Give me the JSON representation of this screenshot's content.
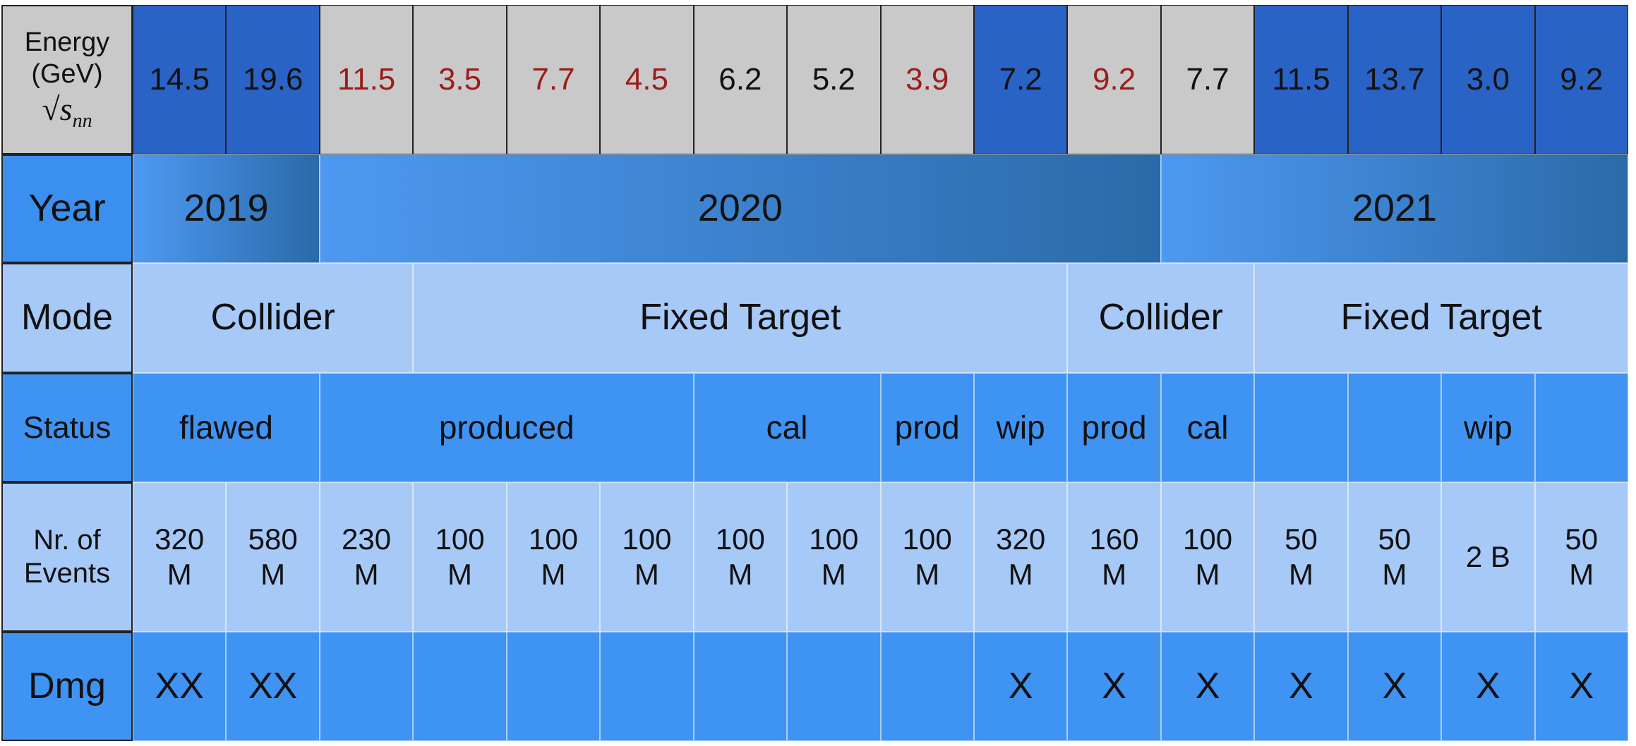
{
  "rows": [
    {
      "label": [
        "Energy",
        "(GeV)"
      ],
      "formula": {
        "radical": "√",
        "base": "s",
        "sub": "nn"
      },
      "cells": [
        {
          "text": "14.5",
          "fill": "#2a63c6",
          "color": "#111111"
        },
        {
          "text": "19.6",
          "fill": "#2a63c6",
          "color": "#111111"
        },
        {
          "text": "11.5",
          "fill": "#c9c9c9",
          "color": "#9c1c1c"
        },
        {
          "text": "3.5",
          "fill": "#c9c9c9",
          "color": "#9c1c1c"
        },
        {
          "text": "7.7",
          "fill": "#c9c9c9",
          "color": "#9c1c1c"
        },
        {
          "text": "4.5",
          "fill": "#c9c9c9",
          "color": "#9c1c1c"
        },
        {
          "text": "6.2",
          "fill": "#c9c9c9",
          "color": "#111111"
        },
        {
          "text": "5.2",
          "fill": "#c9c9c9",
          "color": "#111111"
        },
        {
          "text": "3.9",
          "fill": "#c9c9c9",
          "color": "#9c1c1c"
        },
        {
          "text": "7.2",
          "fill": "#2a63c6",
          "color": "#111111"
        },
        {
          "text": "9.2",
          "fill": "#c9c9c9",
          "color": "#9c1c1c"
        },
        {
          "text": "7.7",
          "fill": "#c9c9c9",
          "color": "#111111"
        },
        {
          "text": "11.5",
          "fill": "#2a63c6",
          "color": "#111111"
        },
        {
          "text": "13.7",
          "fill": "#2a63c6",
          "color": "#111111"
        },
        {
          "text": "3.0",
          "fill": "#2a63c6",
          "color": "#111111"
        },
        {
          "text": "9.2",
          "fill": "#2a63c6",
          "color": "#111111"
        }
      ]
    },
    {
      "label": [
        "Year"
      ],
      "cells": [
        {
          "text": "2019",
          "span": 2
        },
        {
          "text": "2020",
          "span": 9
        },
        {
          "text": "2021",
          "span": 5
        }
      ]
    },
    {
      "label": [
        "Mode"
      ],
      "cells": [
        {
          "text": "Collider",
          "span": 3
        },
        {
          "text": "Fixed Target",
          "span": 7
        },
        {
          "text": "Collider",
          "span": 2
        },
        {
          "text": "Fixed Target",
          "span": 4
        }
      ]
    },
    {
      "label": [
        "Status"
      ],
      "cells": [
        {
          "text": "flawed",
          "span": 2
        },
        {
          "text": "produced",
          "span": 4
        },
        {
          "text": "cal",
          "span": 2
        },
        {
          "text": "prod"
        },
        {
          "text": "wip"
        },
        {
          "text": "prod"
        },
        {
          "text": "cal"
        },
        {
          "text": null
        },
        {
          "text": null
        },
        {
          "text": "wip"
        },
        {
          "text": null
        }
      ]
    },
    {
      "label": [
        "Nr. of",
        "Events"
      ],
      "cells": [
        {
          "text": [
            "320",
            "M"
          ]
        },
        {
          "text": [
            "580",
            "M"
          ]
        },
        {
          "text": [
            "230",
            "M"
          ]
        },
        {
          "text": [
            "100",
            "M"
          ]
        },
        {
          "text": [
            "100",
            "M"
          ]
        },
        {
          "text": [
            "100",
            "M"
          ]
        },
        {
          "text": [
            "100",
            "M"
          ]
        },
        {
          "text": [
            "100",
            "M"
          ]
        },
        {
          "text": [
            "100",
            "M"
          ]
        },
        {
          "text": [
            "320",
            "M"
          ]
        },
        {
          "text": [
            "160",
            "M"
          ]
        },
        {
          "text": [
            "100",
            "M"
          ]
        },
        {
          "text": [
            "50",
            "M"
          ]
        },
        {
          "text": [
            "50",
            "M"
          ]
        },
        {
          "text": [
            "2 B"
          ]
        },
        {
          "text": [
            "50",
            "M"
          ]
        }
      ]
    },
    {
      "label": [
        "Dmg"
      ],
      "cells": [
        {
          "text": "XX"
        },
        {
          "text": "XX"
        },
        {
          "text": null
        },
        {
          "text": null
        },
        {
          "text": null
        },
        {
          "text": null
        },
        {
          "text": null
        },
        {
          "text": null
        },
        {
          "text": null
        },
        {
          "text": "X"
        },
        {
          "text": "X"
        },
        {
          "text": "X"
        },
        {
          "text": "X"
        },
        {
          "text": "X"
        },
        {
          "text": "X"
        },
        {
          "text": "X"
        }
      ]
    }
  ]
}
